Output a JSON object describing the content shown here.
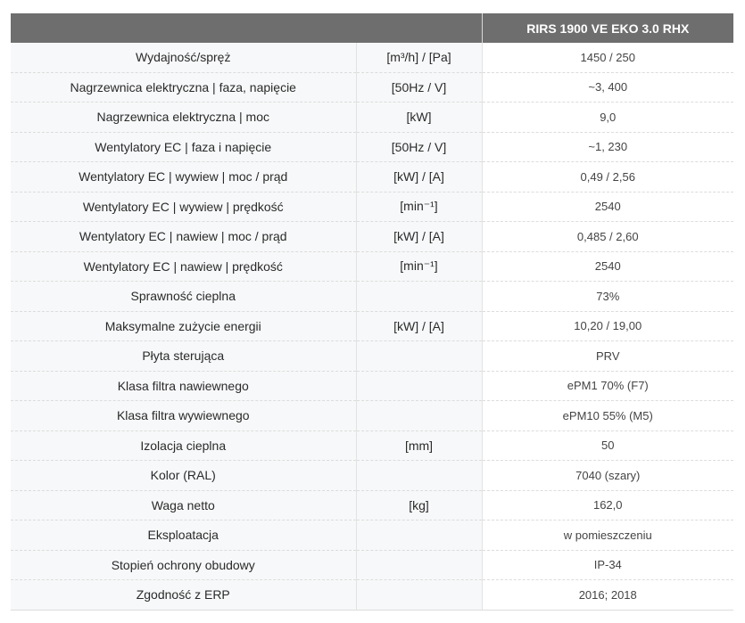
{
  "header": {
    "param_label": "",
    "unit_label": "",
    "model": "RIRS 1900 VE EKO 3.0 RHX"
  },
  "rows": [
    {
      "param": "Wydajność/spręż",
      "unit": "[m³/h] / [Pa]",
      "value": "1450 / 250"
    },
    {
      "param": "Nagrzewnica elektryczna | faza, napięcie",
      "unit": "[50Hz / V]",
      "value": "~3, 400"
    },
    {
      "param": "Nagrzewnica elektryczna | moc",
      "unit": "[kW]",
      "value": "9,0"
    },
    {
      "param": "Wentylatory EC | faza i napięcie",
      "unit": "[50Hz / V]",
      "value": "~1, 230"
    },
    {
      "param": "Wentylatory EC | wywiew | moc / prąd",
      "unit": "[kW] / [A]",
      "value": "0,49 / 2,56"
    },
    {
      "param": "Wentylatory EC | wywiew | prędkość",
      "unit": "[min⁻¹]",
      "value": "2540"
    },
    {
      "param": "Wentylatory EC | nawiew | moc / prąd",
      "unit": "[kW] / [A]",
      "value": "0,485 / 2,60"
    },
    {
      "param": "Wentylatory EC | nawiew | prędkość",
      "unit": "[min⁻¹]",
      "value": "2540"
    },
    {
      "param": "Sprawność cieplna",
      "unit": "",
      "value": "73%"
    },
    {
      "param": "Maksymalne zużycie energii",
      "unit": "[kW] / [A]",
      "value": "10,20 / 19,00"
    },
    {
      "param": "Płyta sterująca",
      "unit": "",
      "value": "PRV"
    },
    {
      "param": "Klasa filtra nawiewnego",
      "unit": "",
      "value": "ePM1 70% (F7)"
    },
    {
      "param": "Klasa filtra wywiewnego",
      "unit": "",
      "value": "ePM10 55% (M5)"
    },
    {
      "param": "Izolacja cieplna",
      "unit": "[mm]",
      "value": "50"
    },
    {
      "param": "Kolor (RAL)",
      "unit": "",
      "value": "7040 (szary)"
    },
    {
      "param": "Waga netto",
      "unit": "[kg]",
      "value": "162,0"
    },
    {
      "param": "Eksploatacja",
      "unit": "",
      "value": "w pomieszczeniu"
    },
    {
      "param": "Stopień ochrony obudowy",
      "unit": "",
      "value": "IP-34"
    },
    {
      "param": "Zgodność z ERP",
      "unit": "",
      "value": "2016; 2018"
    }
  ]
}
